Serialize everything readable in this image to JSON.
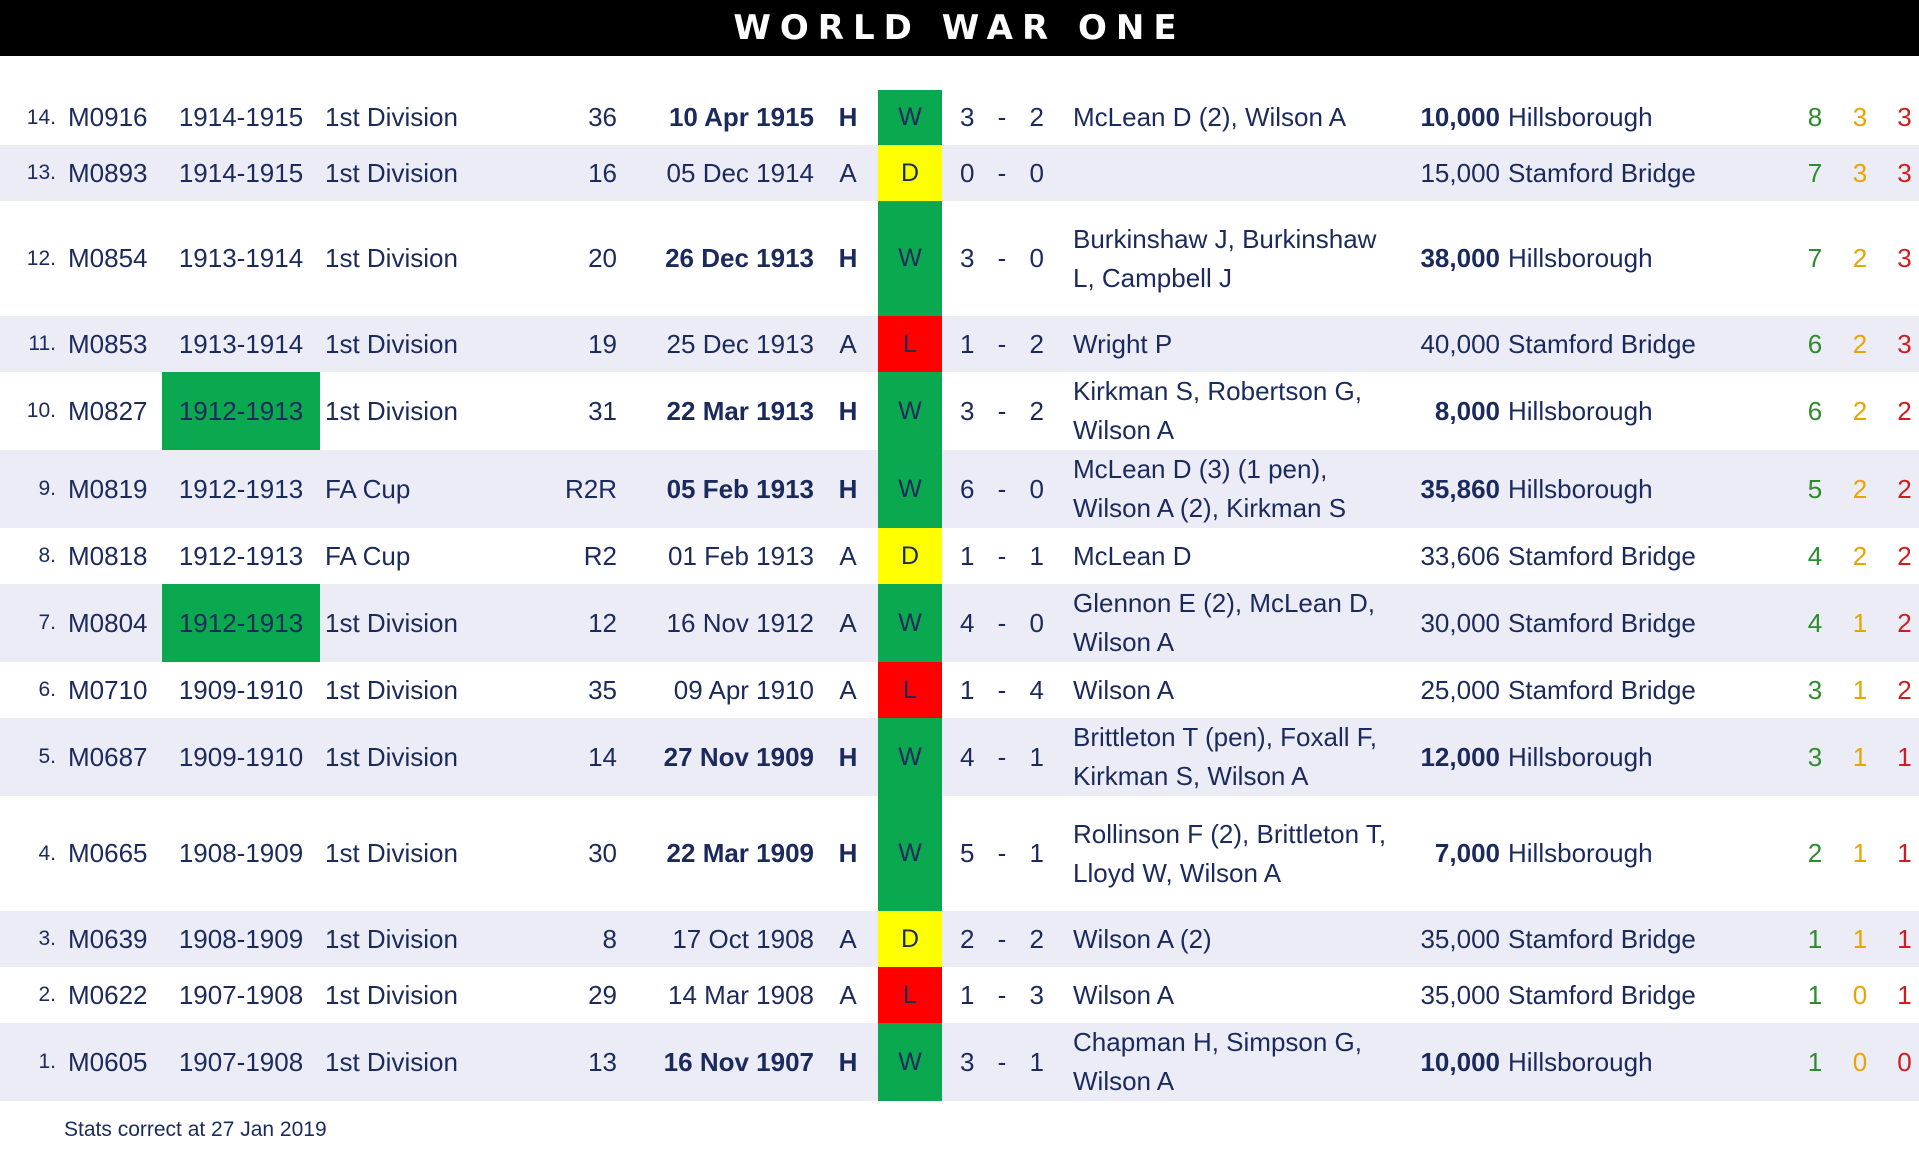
{
  "title": "WORLD WAR ONE",
  "footer": "Stats correct at 27 Jan 2019",
  "colors": {
    "win": "#0aa84f",
    "draw": "#ffff00",
    "loss": "#ff0000",
    "text": "#1b2a5c",
    "shade": "#ececf6",
    "header": "#000000"
  },
  "columns": [
    "num",
    "match_id",
    "season",
    "competition",
    "round",
    "date",
    "venue",
    "result",
    "home_score",
    "away_score",
    "scorers",
    "attendance",
    "ground",
    "w",
    "d",
    "l"
  ],
  "rows": [
    {
      "num": "14.",
      "match_id": "M0916",
      "season": "1914-1915",
      "season_highlight": false,
      "competition": "1st Division",
      "round": "36",
      "date": "10 Apr 1915",
      "venue": "H",
      "result": "W",
      "home_score": "3",
      "away_score": "2",
      "scorers": "McLean D (2), Wilson A",
      "attendance": "10,000",
      "ground": "Hillsborough",
      "w": "8",
      "d": "3",
      "l": "3"
    },
    {
      "num": "13.",
      "match_id": "M0893",
      "season": "1914-1915",
      "season_highlight": false,
      "competition": "1st Division",
      "round": "16",
      "date": "05 Dec 1914",
      "venue": "A",
      "result": "D",
      "home_score": "0",
      "away_score": "0",
      "scorers": "",
      "attendance": "15,000",
      "ground": "Stamford Bridge",
      "w": "7",
      "d": "3",
      "l": "3"
    },
    {
      "num": "12.",
      "match_id": "M0854",
      "season": "1913-1914",
      "season_highlight": false,
      "competition": "1st Division",
      "round": "20",
      "date": "26 Dec 1913",
      "venue": "H",
      "result": "W",
      "home_score": "3",
      "away_score": "0",
      "scorers": "Burkinshaw J, Burkinshaw L, Campbell J",
      "attendance": "38,000",
      "ground": "Hillsborough",
      "w": "7",
      "d": "2",
      "l": "3"
    },
    {
      "num": "11.",
      "match_id": "M0853",
      "season": "1913-1914",
      "season_highlight": false,
      "competition": "1st Division",
      "round": "19",
      "date": "25 Dec 1913",
      "venue": "A",
      "result": "L",
      "home_score": "1",
      "away_score": "2",
      "scorers": "Wright P",
      "attendance": "40,000",
      "ground": "Stamford Bridge",
      "w": "6",
      "d": "2",
      "l": "3"
    },
    {
      "num": "10.",
      "match_id": "M0827",
      "season": "1912-1913",
      "season_highlight": true,
      "competition": "1st Division",
      "round": "31",
      "date": "22 Mar 1913",
      "venue": "H",
      "result": "W",
      "home_score": "3",
      "away_score": "2",
      "scorers": "Kirkman S, Robertson G, Wilson A",
      "attendance": "8,000",
      "ground": "Hillsborough",
      "w": "6",
      "d": "2",
      "l": "2"
    },
    {
      "num": "9.",
      "match_id": "M0819",
      "season": "1912-1913",
      "season_highlight": false,
      "competition": "FA Cup",
      "round": "R2R",
      "date": "05 Feb 1913",
      "venue": "H",
      "result": "W",
      "home_score": "6",
      "away_score": "0",
      "scorers": "McLean D (3) (1 pen), Wilson A (2), Kirkman S",
      "attendance": "35,860",
      "ground": "Hillsborough",
      "w": "5",
      "d": "2",
      "l": "2"
    },
    {
      "num": "8.",
      "match_id": "M0818",
      "season": "1912-1913",
      "season_highlight": false,
      "competition": "FA Cup",
      "round": "R2",
      "date": "01 Feb 1913",
      "venue": "A",
      "result": "D",
      "home_score": "1",
      "away_score": "1",
      "scorers": "McLean D",
      "attendance": "33,606",
      "ground": "Stamford Bridge",
      "w": "4",
      "d": "2",
      "l": "2"
    },
    {
      "num": "7.",
      "match_id": "M0804",
      "season": "1912-1913",
      "season_highlight": true,
      "competition": "1st Division",
      "round": "12",
      "date": "16 Nov 1912",
      "venue": "A",
      "result": "W",
      "home_score": "4",
      "away_score": "0",
      "scorers": "Glennon E (2), McLean D, Wilson A",
      "attendance": "30,000",
      "ground": "Stamford Bridge",
      "w": "4",
      "d": "1",
      "l": "2"
    },
    {
      "num": "6.",
      "match_id": "M0710",
      "season": "1909-1910",
      "season_highlight": false,
      "competition": "1st Division",
      "round": "35",
      "date": "09 Apr 1910",
      "venue": "A",
      "result": "L",
      "home_score": "1",
      "away_score": "4",
      "scorers": "Wilson A",
      "attendance": "25,000",
      "ground": "Stamford Bridge",
      "w": "3",
      "d": "1",
      "l": "2"
    },
    {
      "num": "5.",
      "match_id": "M0687",
      "season": "1909-1910",
      "season_highlight": false,
      "competition": "1st Division",
      "round": "14",
      "date": "27 Nov 1909",
      "venue": "H",
      "result": "W",
      "home_score": "4",
      "away_score": "1",
      "scorers": "Brittleton T (pen), Foxall F, Kirkman S, Wilson A",
      "attendance": "12,000",
      "ground": "Hillsborough",
      "w": "3",
      "d": "1",
      "l": "1"
    },
    {
      "num": "4.",
      "match_id": "M0665",
      "season": "1908-1909",
      "season_highlight": false,
      "competition": "1st Division",
      "round": "30",
      "date": "22 Mar 1909",
      "venue": "H",
      "result": "W",
      "home_score": "5",
      "away_score": "1",
      "scorers": "Rollinson F (2), Brittleton T, Lloyd W, Wilson A",
      "attendance": "7,000",
      "ground": "Hillsborough",
      "w": "2",
      "d": "1",
      "l": "1"
    },
    {
      "num": "3.",
      "match_id": "M0639",
      "season": "1908-1909",
      "season_highlight": false,
      "competition": "1st Division",
      "round": "8",
      "date": "17 Oct 1908",
      "venue": "A",
      "result": "D",
      "home_score": "2",
      "away_score": "2",
      "scorers": "Wilson A (2)",
      "attendance": "35,000",
      "ground": "Stamford Bridge",
      "w": "1",
      "d": "1",
      "l": "1"
    },
    {
      "num": "2.",
      "match_id": "M0622",
      "season": "1907-1908",
      "season_highlight": false,
      "competition": "1st Division",
      "round": "29",
      "date": "14 Mar 1908",
      "venue": "A",
      "result": "L",
      "home_score": "1",
      "away_score": "3",
      "scorers": "Wilson A",
      "attendance": "35,000",
      "ground": "Stamford Bridge",
      "w": "1",
      "d": "0",
      "l": "1"
    },
    {
      "num": "1.",
      "match_id": "M0605",
      "season": "1907-1908",
      "season_highlight": false,
      "competition": "1st Division",
      "round": "13",
      "date": "16 Nov 1907",
      "venue": "H",
      "result": "W",
      "home_score": "3",
      "away_score": "1",
      "scorers": "Chapman H, Simpson G, Wilson A",
      "attendance": "10,000",
      "ground": "Hillsborough",
      "w": "1",
      "d": "0",
      "l": "0"
    }
  ]
}
